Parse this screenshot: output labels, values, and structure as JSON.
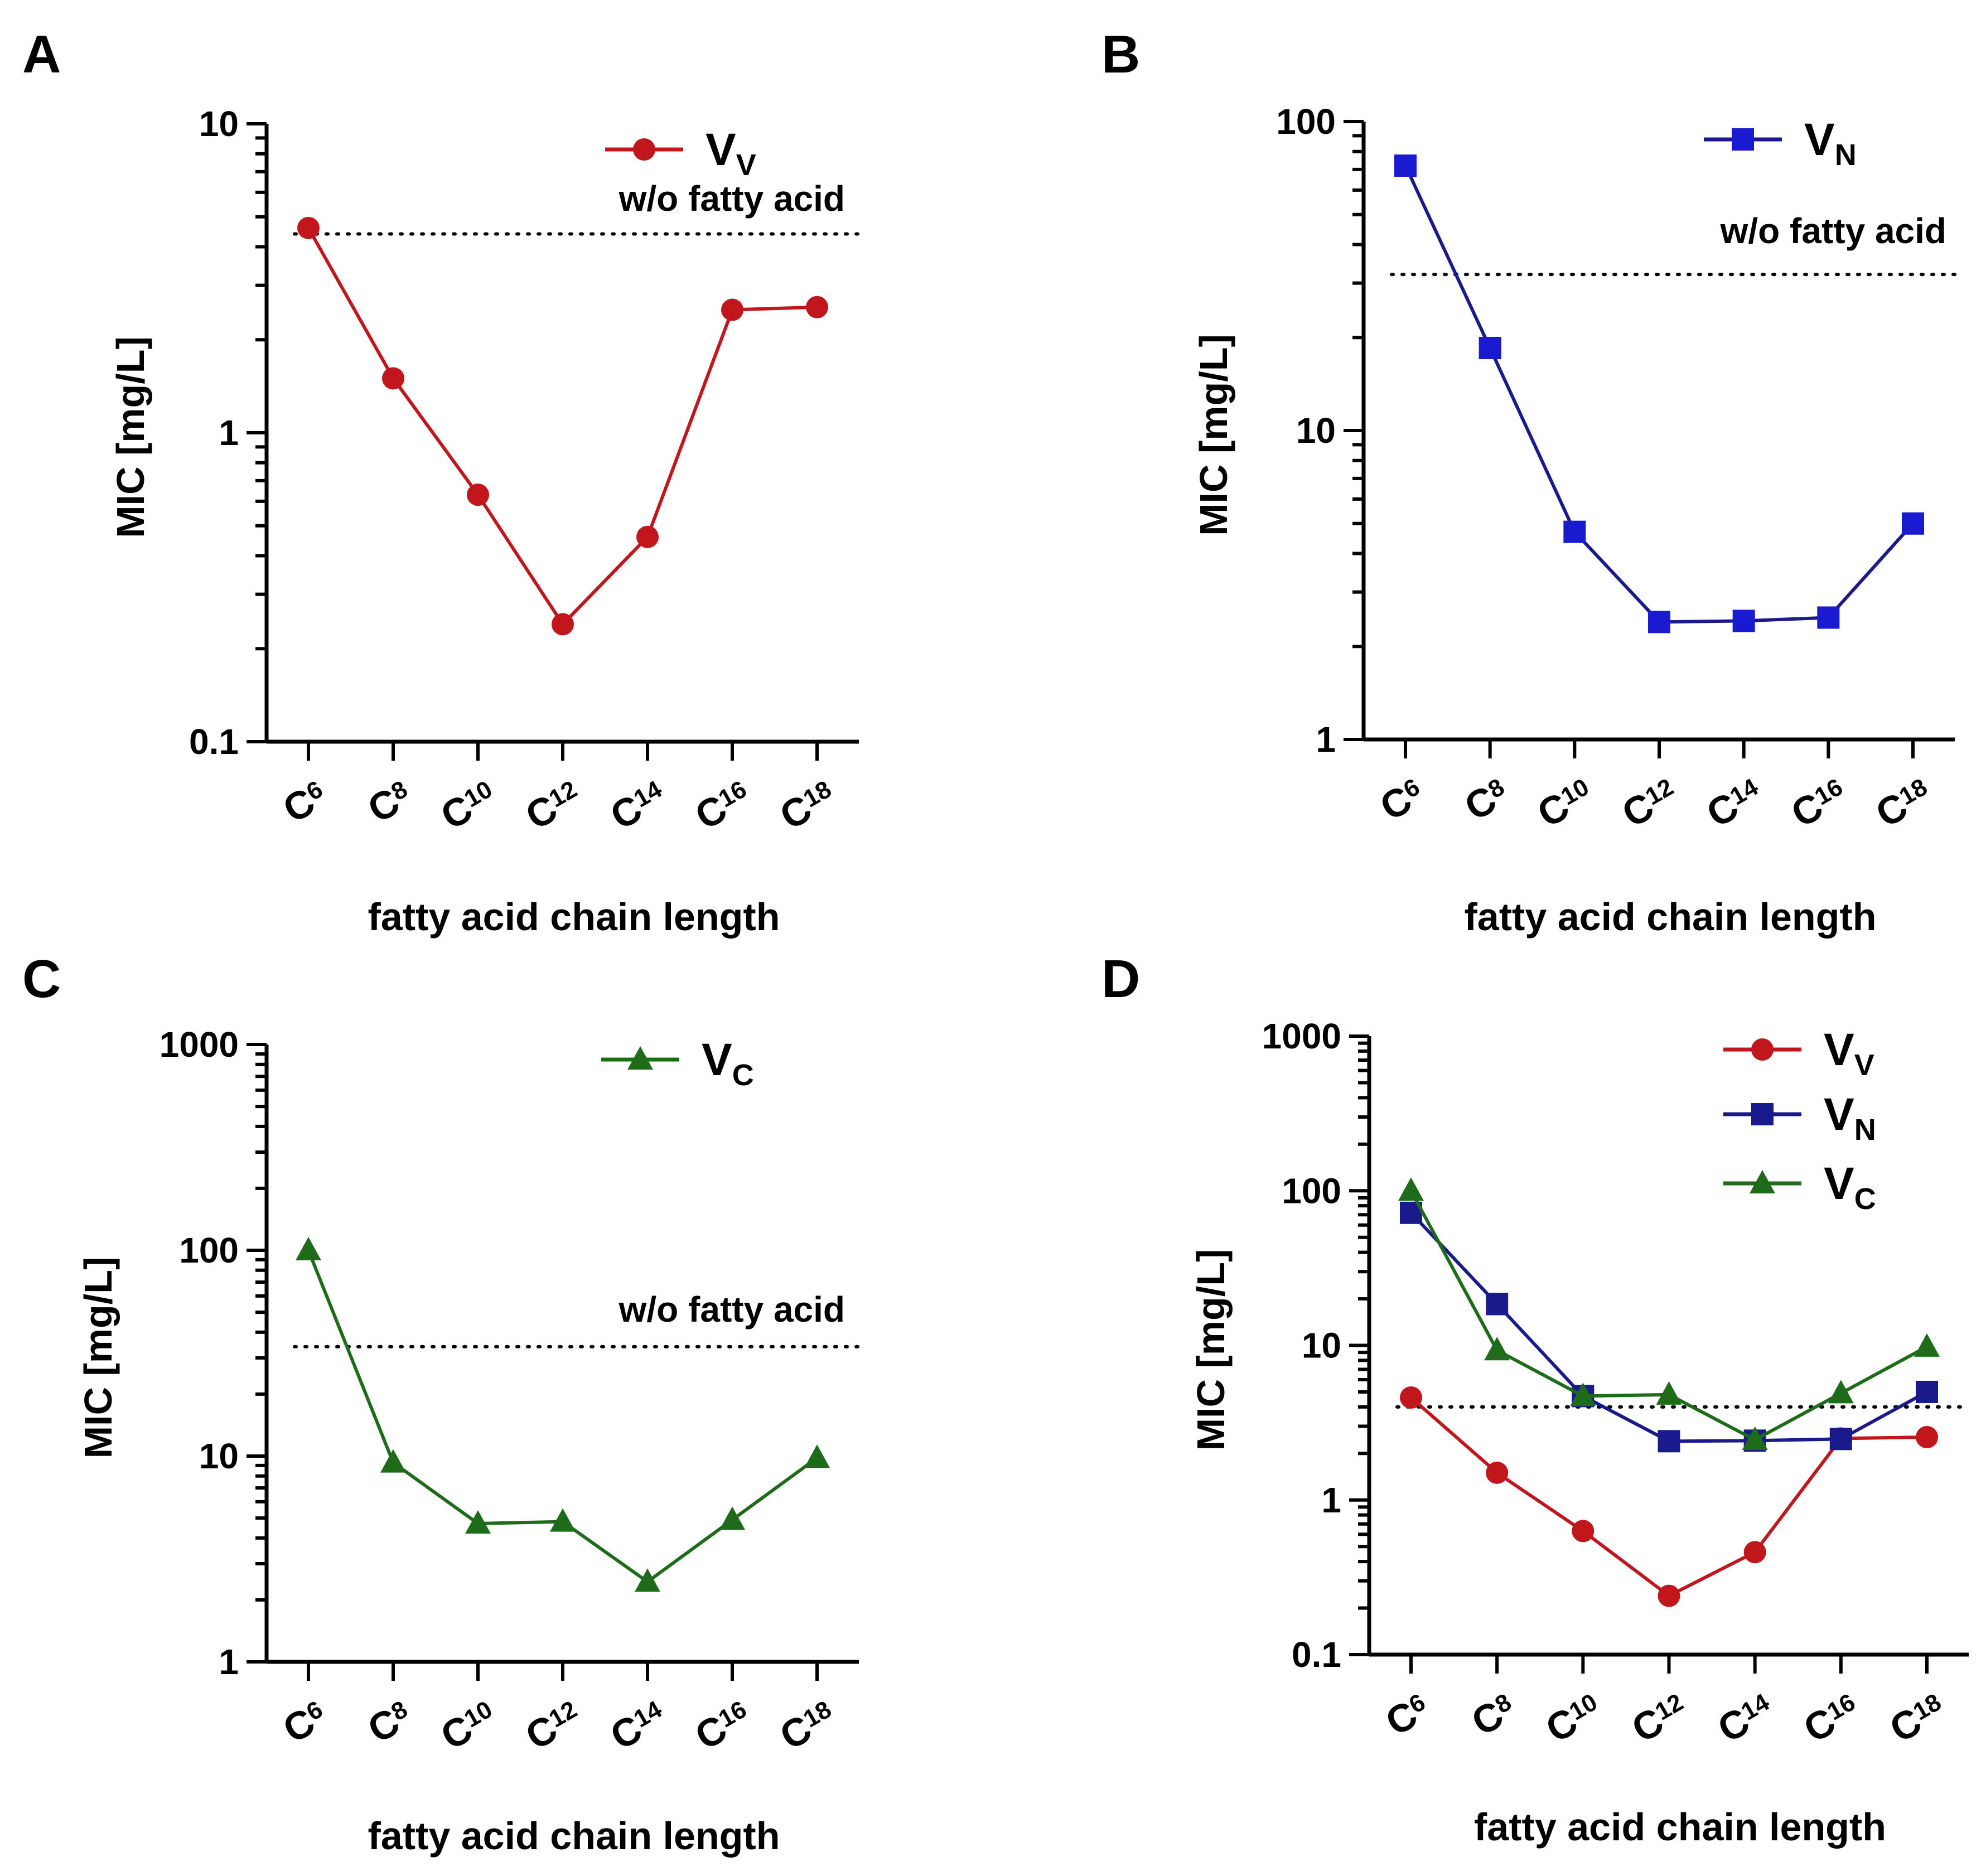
{
  "figure": {
    "xlabel": "fatty acid chain length",
    "ylabel": "MIC [mg/L]",
    "reference_label": "w/o fatty acid"
  },
  "chart_data": [
    {
      "panel": "A",
      "type": "line",
      "yscale": "log",
      "ylim": [
        0.1,
        10
      ],
      "yticks": [
        "0.1",
        "1",
        "10"
      ],
      "categories": [
        {
          "base": "C",
          "sub": "6"
        },
        {
          "base": "C",
          "sub": "8"
        },
        {
          "base": "C",
          "sub": "10"
        },
        {
          "base": "C",
          "sub": "12"
        },
        {
          "base": "C",
          "sub": "14"
        },
        {
          "base": "C",
          "sub": "16"
        },
        {
          "base": "C",
          "sub": "18"
        }
      ],
      "xlabel": "fatty acid chain length",
      "ylabel": "MIC [mg/L]",
      "reference": {
        "value": 4.4,
        "label": "w/o fatty acid"
      },
      "series": [
        {
          "name": "V",
          "sub": "V",
          "color": "#c0161c",
          "marker": "circle",
          "values": [
            4.6,
            1.5,
            0.63,
            0.24,
            0.46,
            2.5,
            2.55
          ]
        }
      ]
    },
    {
      "panel": "B",
      "type": "line",
      "yscale": "log",
      "ylim": [
        1,
        100
      ],
      "yticks": [
        "1",
        "10",
        "100"
      ],
      "categories": [
        {
          "base": "C",
          "sub": "6"
        },
        {
          "base": "C",
          "sub": "8"
        },
        {
          "base": "C",
          "sub": "10"
        },
        {
          "base": "C",
          "sub": "12"
        },
        {
          "base": "C",
          "sub": "14"
        },
        {
          "base": "C",
          "sub": "16"
        },
        {
          "base": "C",
          "sub": "18"
        }
      ],
      "xlabel": "fatty acid chain length",
      "ylabel": "MIC [mg/L]",
      "reference": {
        "value": 32,
        "label": "w/o fatty acid"
      },
      "series": [
        {
          "name": "V",
          "sub": "N",
          "color": "#1a1ad0",
          "line_color": "#1a1a8c",
          "marker": "square",
          "values": [
            72,
            18.5,
            4.7,
            2.4,
            2.42,
            2.48,
            5.0
          ]
        }
      ]
    },
    {
      "panel": "C",
      "type": "line",
      "yscale": "log",
      "ylim": [
        1,
        1000
      ],
      "yticks": [
        "1",
        "10",
        "100",
        "1000"
      ],
      "categories": [
        {
          "base": "C",
          "sub": "6"
        },
        {
          "base": "C",
          "sub": "8"
        },
        {
          "base": "C",
          "sub": "10"
        },
        {
          "base": "C",
          "sub": "12"
        },
        {
          "base": "C",
          "sub": "14"
        },
        {
          "base": "C",
          "sub": "16"
        },
        {
          "base": "C",
          "sub": "18"
        }
      ],
      "xlabel": "fatty acid chain length",
      "ylabel": "MIC [mg/L]",
      "reference": {
        "value": 34,
        "label": "w/o fatty acid"
      },
      "series": [
        {
          "name": "V",
          "sub": "C",
          "color": "#1e6b1a",
          "marker": "triangle",
          "values": [
            100,
            9.3,
            4.7,
            4.8,
            2.45,
            4.9,
            9.8
          ]
        }
      ]
    },
    {
      "panel": "D",
      "type": "line",
      "yscale": "log",
      "ylim": [
        0.1,
        1000
      ],
      "yticks": [
        "0.1",
        "1",
        "10",
        "100",
        "1000"
      ],
      "categories": [
        {
          "base": "C",
          "sub": "6"
        },
        {
          "base": "C",
          "sub": "8"
        },
        {
          "base": "C",
          "sub": "10"
        },
        {
          "base": "C",
          "sub": "12"
        },
        {
          "base": "C",
          "sub": "14"
        },
        {
          "base": "C",
          "sub": "16"
        },
        {
          "base": "C",
          "sub": "18"
        }
      ],
      "xlabel": "fatty acid chain length",
      "ylabel": "MIC [mg/L]",
      "reference": {
        "value": 4.0,
        "label": ""
      },
      "series": [
        {
          "name": "V",
          "sub": "V",
          "color": "#c0161c",
          "marker": "circle",
          "values": [
            4.6,
            1.5,
            0.63,
            0.24,
            0.46,
            2.5,
            2.55
          ]
        },
        {
          "name": "V",
          "sub": "N",
          "color": "#1a1a8c",
          "marker": "square",
          "values": [
            72,
            18.5,
            4.7,
            2.4,
            2.42,
            2.48,
            5.0
          ]
        },
        {
          "name": "V",
          "sub": "C",
          "color": "#1e6b1a",
          "marker": "triangle",
          "values": [
            100,
            9.3,
            4.7,
            4.8,
            2.45,
            4.9,
            9.8
          ]
        }
      ]
    }
  ]
}
